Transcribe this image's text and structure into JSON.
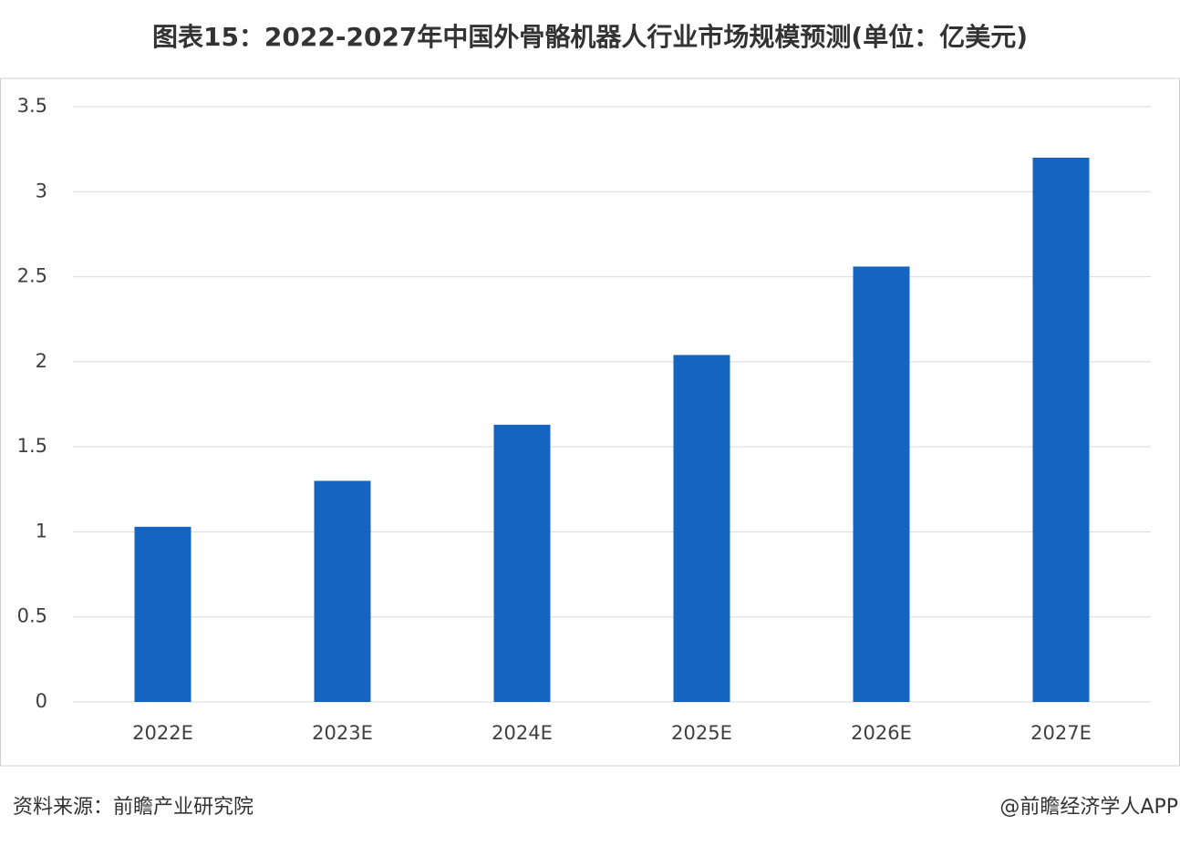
{
  "chart_data": {
    "type": "bar",
    "title": "图表15：2022-2027年中国外骨骼机器人行业市场规模预测(单位：亿美元)",
    "categories": [
      "2022E",
      "2023E",
      "2024E",
      "2025E",
      "2026E",
      "2027E"
    ],
    "values": [
      1.03,
      1.3,
      1.63,
      2.04,
      2.56,
      3.2
    ],
    "color": "#1565c0",
    "ylim": [
      0,
      3.5
    ],
    "yticks": [
      0,
      0.5,
      1,
      1.5,
      2,
      2.5,
      3,
      3.5
    ],
    "grid": true,
    "source": "资料来源：前瞻产业研究院",
    "credit": "@前瞻经济学人APP"
  }
}
